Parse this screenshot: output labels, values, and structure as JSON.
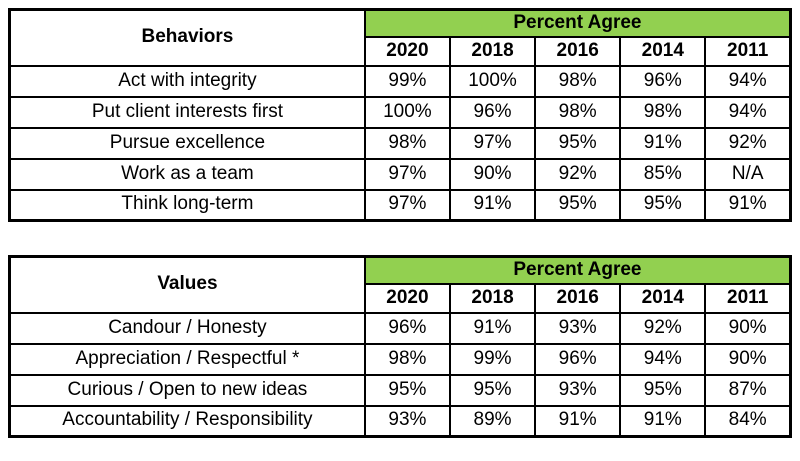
{
  "colors": {
    "header_green": "#92D050",
    "border": "#000000",
    "background": "#FFFFFF",
    "text": "#000000"
  },
  "chart_data": [
    {
      "type": "table",
      "title": "Behaviors",
      "row_header": "Behaviors",
      "group_header": "Percent Agree",
      "columns": [
        "2020",
        "2018",
        "2016",
        "2014",
        "2011"
      ],
      "rows": [
        {
          "label": "Act with integrity",
          "values": [
            "99%",
            "100%",
            "98%",
            "96%",
            "94%"
          ]
        },
        {
          "label": "Put client interests first",
          "values": [
            "100%",
            "96%",
            "98%",
            "98%",
            "94%"
          ]
        },
        {
          "label": "Pursue excellence",
          "values": [
            "98%",
            "97%",
            "95%",
            "91%",
            "92%"
          ]
        },
        {
          "label": "Work as a team",
          "values": [
            "97%",
            "90%",
            "92%",
            "85%",
            "N/A"
          ]
        },
        {
          "label": "Think long-term",
          "values": [
            "97%",
            "91%",
            "95%",
            "95%",
            "91%"
          ]
        }
      ]
    },
    {
      "type": "table",
      "title": "Values",
      "row_header": "Values",
      "group_header": "Percent Agree",
      "columns": [
        "2020",
        "2018",
        "2016",
        "2014",
        "2011"
      ],
      "rows": [
        {
          "label": "Candour / Honesty",
          "values": [
            "96%",
            "91%",
            "93%",
            "92%",
            "90%"
          ]
        },
        {
          "label": "Appreciation / Respectful *",
          "values": [
            "98%",
            "99%",
            "96%",
            "94%",
            "90%"
          ]
        },
        {
          "label": "Curious / Open to new ideas",
          "values": [
            "95%",
            "95%",
            "93%",
            "95%",
            "87%"
          ]
        },
        {
          "label": "Accountability / Responsibility",
          "values": [
            "93%",
            "89%",
            "91%",
            "91%",
            "84%"
          ]
        }
      ]
    }
  ]
}
